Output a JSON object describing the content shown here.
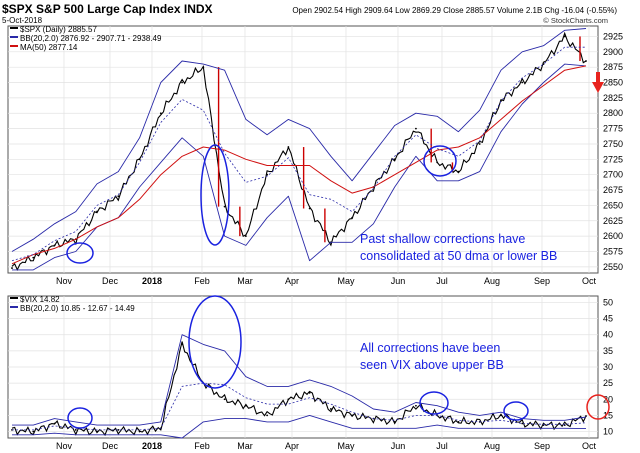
{
  "header": {
    "symbol_line": "$SPX S&P 500 Large Cap Index INDX",
    "date": "5-Oct-2018",
    "ohlc": "Open 2902.54 High 2909.64 Low 2869.29 Close 2885.57 Volume 2.1B Chg -16.04 (-0.55%)",
    "watermark": "© StockCharts.com"
  },
  "top_legend": {
    "price": "$SPX (Daily) 2885.57",
    "bb": "BB(20,2.0) 2876.92 - 2907.71 - 2938.49",
    "ma": "MA(50) 2877.14"
  },
  "bottom_legend": {
    "vix": "$VIX 14.82",
    "bb": "BB(20,2.0) 10.85 - 12.67 - 14.49"
  },
  "annotations": {
    "top": [
      "Past shallow corrections have",
      "consolidated at 50 dma or lower BB"
    ],
    "bottom": [
      "All corrections have been",
      "seen VIX above upper BB"
    ]
  },
  "colors": {
    "price": "#000000",
    "down_bar": "#cc0000",
    "bands": "#2a2aa8",
    "ma50": "#d01010",
    "annotation": "#1a22e0",
    "arrow": "#e8231e"
  },
  "chart_data": [
    {
      "type": "line",
      "title": "$SPX S&P 500 Large Cap Index INDX",
      "x_ticks": [
        "Nov",
        "Dec",
        "2018",
        "Feb",
        "Mar",
        "Apr",
        "May",
        "Jun",
        "Jul",
        "Aug",
        "Sep",
        "Oct"
      ],
      "y_ticks": [
        2550,
        2575,
        2600,
        2625,
        2650,
        2675,
        2700,
        2725,
        2750,
        2775,
        2800,
        2825,
        2850,
        2875,
        2900,
        2925
      ],
      "ylim": [
        2540,
        2942
      ],
      "x": [
        "Oct",
        "Nov",
        "Nov",
        "Dec",
        "Dec",
        "Jan",
        "Jan",
        "Jan",
        "Feb",
        "Feb",
        "Feb",
        "Mar",
        "Mar",
        "Mar",
        "Apr",
        "Apr",
        "May",
        "May",
        "Jun",
        "Jun",
        "Jul",
        "Jul",
        "Aug",
        "Aug",
        "Sep",
        "Sep",
        "Oct",
        "Oct"
      ],
      "series": [
        {
          "name": "$SPX (Daily)",
          "values": [
            2548,
            2565,
            2585,
            2595,
            2640,
            2665,
            2725,
            2800,
            2850,
            2875,
            2648,
            2600,
            2700,
            2745,
            2645,
            2590,
            2630,
            2680,
            2725,
            2775,
            2720,
            2705,
            2750,
            2820,
            2850,
            2880,
            2925,
            2885
          ]
        },
        {
          "name": "BB Upper",
          "values": [
            2575,
            2595,
            2620,
            2640,
            2685,
            2705,
            2760,
            2850,
            2885,
            2880,
            2870,
            2790,
            2765,
            2790,
            2775,
            2730,
            2690,
            2735,
            2780,
            2800,
            2795,
            2770,
            2805,
            2870,
            2900,
            2910,
            2935,
            2938
          ]
        },
        {
          "name": "BB Lower",
          "values": [
            2545,
            2545,
            2565,
            2575,
            2615,
            2630,
            2680,
            2720,
            2760,
            2730,
            2600,
            2585,
            2630,
            2665,
            2560,
            2590,
            2590,
            2620,
            2680,
            2730,
            2690,
            2690,
            2705,
            2770,
            2815,
            2850,
            2880,
            2877
          ]
        },
        {
          "name": "MA(50)",
          "values": [
            2555,
            2570,
            2580,
            2595,
            2615,
            2630,
            2660,
            2700,
            2730,
            2745,
            2740,
            2725,
            2715,
            2715,
            2715,
            2690,
            2670,
            2680,
            2700,
            2720,
            2740,
            2745,
            2760,
            2790,
            2820,
            2845,
            2870,
            2877
          ]
        }
      ]
    },
    {
      "type": "line",
      "title": "$VIX",
      "x_ticks": [
        "Nov",
        "Dec",
        "2018",
        "Feb",
        "Mar",
        "Apr",
        "May",
        "Jun",
        "Jul",
        "Aug",
        "Sep",
        "Oct"
      ],
      "y_ticks": [
        10,
        15,
        20,
        25,
        30,
        35,
        40,
        45,
        50
      ],
      "ylim": [
        8,
        52
      ],
      "x": [
        "Oct",
        "Nov",
        "Nov",
        "Dec",
        "Dec",
        "Jan",
        "Jan",
        "Jan",
        "Feb",
        "Feb",
        "Feb",
        "Mar",
        "Mar",
        "Mar",
        "Apr",
        "Apr",
        "May",
        "May",
        "Jun",
        "Jun",
        "Jul",
        "Jul",
        "Aug",
        "Aug",
        "Sep",
        "Sep",
        "Oct",
        "Oct"
      ],
      "series": [
        {
          "name": "$VIX",
          "values": [
            10.5,
            10,
            12.5,
            10.5,
            10,
            10.5,
            10,
            11,
            37,
            25,
            20,
            18,
            15,
            20,
            22,
            17,
            15,
            14,
            13,
            18,
            15,
            13,
            13,
            15,
            12.5,
            12,
            12,
            14.8
          ]
        },
        {
          "name": "BB Upper",
          "values": [
            12,
            12,
            14,
            13,
            12,
            12,
            12,
            13,
            40,
            37,
            35,
            27,
            24,
            24,
            26,
            24,
            21,
            17,
            16,
            19,
            18,
            16,
            15,
            16,
            14,
            13.5,
            13.5,
            14.5
          ]
        },
        {
          "name": "BB Lower",
          "values": [
            9,
            9,
            9.5,
            9,
            9,
            9,
            9,
            9,
            8,
            13,
            14,
            14,
            13,
            13,
            15,
            13,
            11,
            11,
            11,
            11,
            12,
            11,
            11,
            11,
            11,
            11,
            11,
            10.9
          ]
        }
      ]
    }
  ]
}
